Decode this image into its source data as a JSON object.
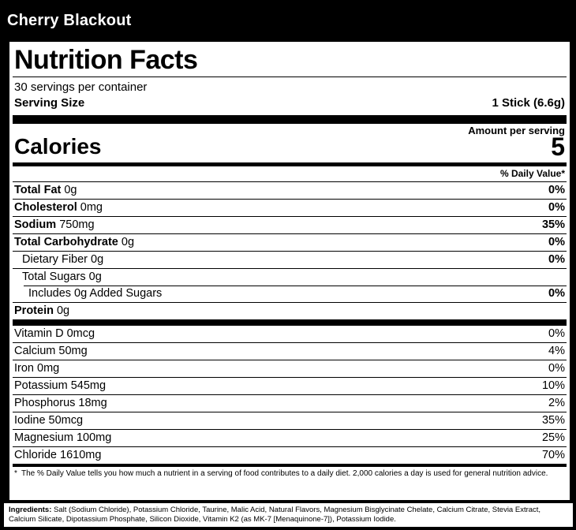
{
  "header": {
    "product_name": "Cherry Blackout"
  },
  "label": {
    "title": "Nutrition Facts",
    "servings_per_container": "30 servings per container",
    "serving_size_label": "Serving Size",
    "serving_size_value": "1 Stick (6.6g)",
    "amount_per_serving": "Amount per serving",
    "calories_label": "Calories",
    "calories_value": "5",
    "daily_value_header": "% Daily Value*",
    "nutrients": [
      {
        "name": "Total Fat",
        "amount": "0g",
        "dv": "0%",
        "bold_name": true,
        "indent": 0
      },
      {
        "name": "Cholesterol",
        "amount": "0mg",
        "dv": "0%",
        "bold_name": true,
        "indent": 0
      },
      {
        "name": "Sodium",
        "amount": "750mg",
        "dv": "35%",
        "bold_name": true,
        "indent": 0
      },
      {
        "name": "Total Carbohydrate",
        "amount": "0g",
        "dv": "0%",
        "bold_name": true,
        "indent": 0
      },
      {
        "name": "Dietary Fiber",
        "amount": "0g",
        "dv": "0%",
        "bold_name": false,
        "indent": 1
      },
      {
        "name": "Total Sugars",
        "amount": "0g",
        "dv": "",
        "bold_name": false,
        "indent": 1,
        "no_bottom_rule": true
      },
      {
        "name": "Includes 0g Added Sugars",
        "amount": "",
        "dv": "0%",
        "bold_name": false,
        "indent": 2,
        "indent_rule": true
      },
      {
        "name": "Protein",
        "amount": "0g",
        "dv": "",
        "bold_name": true,
        "indent": 0
      }
    ],
    "micronutrients": [
      {
        "name": "Vitamin D",
        "amount": "0mcg",
        "dv": "0%"
      },
      {
        "name": "Calcium",
        "amount": "50mg",
        "dv": "4%"
      },
      {
        "name": "Iron",
        "amount": "0mg",
        "dv": "0%"
      },
      {
        "name": "Potassium",
        "amount": "545mg",
        "dv": "10%"
      },
      {
        "name": "Phosphorus",
        "amount": "18mg",
        "dv": "2%"
      },
      {
        "name": "Iodine",
        "amount": "50mcg",
        "dv": "35%"
      },
      {
        "name": "Magnesium",
        "amount": "100mg",
        "dv": "25%"
      },
      {
        "name": "Chloride",
        "amount": "1610mg",
        "dv": "70%"
      }
    ],
    "footnote_symbol": "*",
    "footnote": "The % Daily Value tells you how much a nutrient in a serving of food contributes to a daily diet. 2,000 calories a day is used for general nutrition advice."
  },
  "ingredients": {
    "label": "Ingredients:",
    "text": " Salt (Sodium Chloride), Potassium Chloride, Taurine, Malic Acid, Natural Flavors, Magnesium Bisglycinate Chelate, Calcium Citrate, Stevia Extract, Calcium Silicate, Dipotassium Phosphate, Silicon Dioxide, Vitamin K2 (as MK-7 [Menaquinone-7]), Potassium Iodide."
  },
  "colors": {
    "background": "#000000",
    "panel": "#ffffff",
    "panel_text": "#000000",
    "banner_text": "#ffffff"
  }
}
